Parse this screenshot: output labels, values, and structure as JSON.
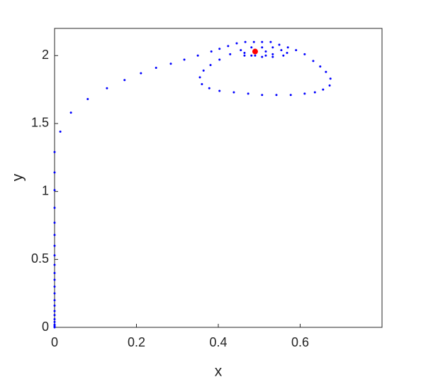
{
  "chart_data": {
    "type": "scatter",
    "xlabel": "x",
    "ylabel": "y",
    "xlim": [
      0,
      0.8
    ],
    "ylim": [
      0,
      2.2
    ],
    "xticks": [
      0,
      0.2,
      0.4,
      0.6
    ],
    "yticks": [
      0,
      0.5,
      1,
      1.5,
      2
    ],
    "series": [
      {
        "color": "#0000ff",
        "x": [
          0,
          0,
          0,
          0,
          0,
          0,
          0,
          0,
          0,
          0,
          0,
          0,
          0,
          0,
          0,
          0,
          0,
          0,
          0,
          0,
          0,
          0,
          0.014,
          0.04,
          0.081,
          0.128,
          0.171,
          0.211,
          0.248,
          0.284,
          0.317,
          0.35,
          0.383,
          0.403,
          0.424,
          0.445,
          0.466,
          0.487,
          0.507,
          0.528,
          0.549,
          0.57,
          0.59,
          0.611,
          0.632,
          0.649,
          0.663,
          0.674,
          0.672,
          0.656,
          0.636,
          0.611,
          0.577,
          0.542,
          0.507,
          0.473,
          0.438,
          0.403,
          0.378,
          0.36,
          0.355,
          0.364,
          0.381,
          0.403,
          0.429,
          0.455,
          0.481,
          0.507,
          0.533,
          0.554,
          0.568,
          0.559,
          0.533,
          0.507,
          0.481,
          0.464,
          0.464,
          0.49,
          0.516,
          0.533,
          0.516,
          0.49
        ],
        "y": [
          0,
          0.01,
          0.02,
          0.04,
          0.06,
          0.09,
          0.12,
          0.16,
          0.2,
          0.25,
          0.3,
          0.35,
          0.4,
          0.46,
          0.53,
          0.6,
          0.68,
          0.77,
          0.88,
          1.01,
          1.14,
          1.29,
          1.44,
          1.58,
          1.68,
          1.76,
          1.82,
          1.87,
          1.91,
          1.94,
          1.97,
          2.0,
          2.03,
          2.05,
          2.07,
          2.09,
          2.1,
          2.1,
          2.1,
          2.1,
          2.08,
          2.06,
          2.04,
          2.01,
          1.96,
          1.92,
          1.88,
          1.83,
          1.78,
          1.75,
          1.73,
          1.72,
          1.71,
          1.71,
          1.71,
          1.72,
          1.73,
          1.74,
          1.76,
          1.79,
          1.84,
          1.89,
          1.93,
          1.97,
          2.01,
          2.04,
          2.06,
          2.06,
          2.06,
          2.04,
          2.02,
          2.0,
          1.99,
          1.99,
          2.0,
          2.0,
          2.02,
          2.03,
          2.03,
          2.01,
          2.0,
          2.0
        ]
      },
      {
        "color": "#ff0000",
        "x": [
          0.49
        ],
        "y": [
          2.03
        ]
      }
    ]
  }
}
